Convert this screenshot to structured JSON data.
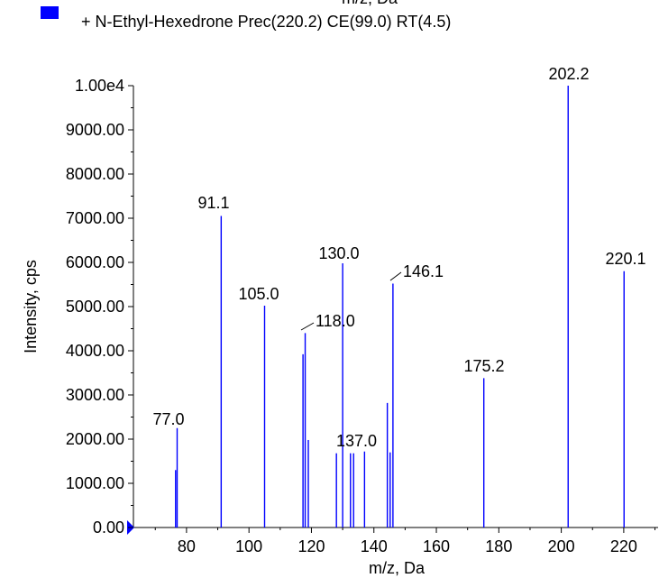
{
  "top_cut_label": "m/z, Da",
  "legend": {
    "swatch_color": "#0000ff",
    "text": "+ N-Ethyl-Hexedrone Prec(220.2) CE(99.0) RT(4.5)"
  },
  "chart_data": {
    "type": "bar",
    "xlabel": "m/z, Da",
    "ylabel": "Intensity, cps",
    "xlim": [
      63,
      231
    ],
    "ylim": [
      0,
      10000
    ],
    "x_ticks": [
      "80",
      "100",
      "120",
      "140",
      "160",
      "180",
      "200",
      "220"
    ],
    "y_ticks": [
      "0.00",
      "1000.00",
      "2000.00",
      "3000.00",
      "4000.00",
      "5000.00",
      "6000.00",
      "7000.00",
      "8000.00",
      "9000.00",
      "1.00e4"
    ],
    "bar_color": "#0000ff",
    "peaks": [
      {
        "mz": 76.5,
        "intensity": 1300
      },
      {
        "mz": 77.0,
        "intensity": 2250
      },
      {
        "mz": 91.1,
        "intensity": 7050
      },
      {
        "mz": 105.0,
        "intensity": 5020
      },
      {
        "mz": 117.3,
        "intensity": 3920
      },
      {
        "mz": 118.0,
        "intensity": 4400
      },
      {
        "mz": 119.0,
        "intensity": 1980
      },
      {
        "mz": 128.0,
        "intensity": 1680
      },
      {
        "mz": 130.0,
        "intensity": 5980
      },
      {
        "mz": 132.5,
        "intensity": 1680
      },
      {
        "mz": 133.5,
        "intensity": 1680
      },
      {
        "mz": 137.0,
        "intensity": 1720
      },
      {
        "mz": 144.3,
        "intensity": 2820
      },
      {
        "mz": 145.2,
        "intensity": 1700
      },
      {
        "mz": 146.1,
        "intensity": 5520
      },
      {
        "mz": 175.2,
        "intensity": 3380
      },
      {
        "mz": 202.2,
        "intensity": 10000
      },
      {
        "mz": 220.1,
        "intensity": 5800
      }
    ],
    "peak_labels": [
      "77.0",
      "91.1",
      "105.0",
      "118.0",
      "130.0",
      "137.0",
      "146.1",
      "175.2",
      "202.2",
      "220.1"
    ]
  }
}
